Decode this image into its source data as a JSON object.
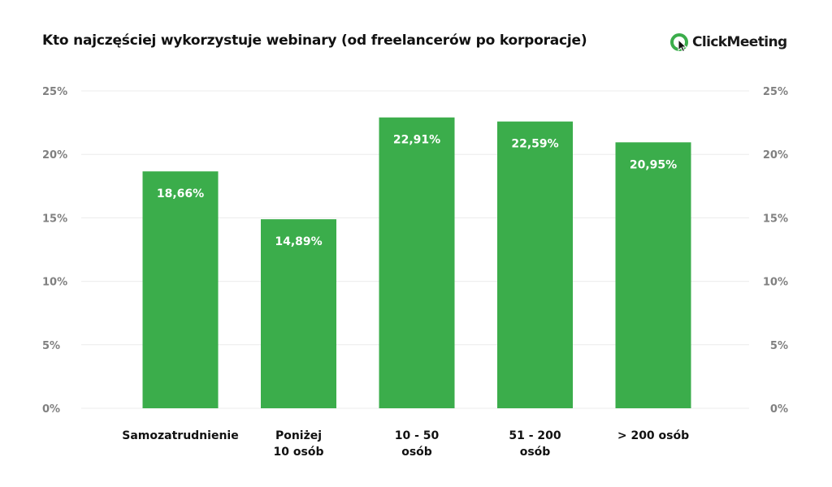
{
  "header": {
    "title": "Kto najczęściej wykorzystuje webinary (od freelancerów po korporacje)",
    "brand": "ClickMeeting",
    "brand_icon": "clickmeeting-logo-icon"
  },
  "colors": {
    "bar": "#3bad4b",
    "grid": "#ececec",
    "tick": "#808080",
    "brand_green": "#3bad4b"
  },
  "chart_data": {
    "type": "bar",
    "title": "Kto najczęściej wykorzystuje webinary (od freelancerów po korporacje)",
    "categories": [
      [
        "Samozatrudnienie"
      ],
      [
        "Poniżej",
        "10 osób"
      ],
      [
        "10 - 50",
        "osób"
      ],
      [
        "51 - 200",
        "osób"
      ],
      [
        "> 200 osób"
      ]
    ],
    "values": [
      18.66,
      14.89,
      22.91,
      22.59,
      20.95
    ],
    "value_labels": [
      "18,66%",
      "14,89%",
      "22,91%",
      "22,59%",
      "20,95%"
    ],
    "y_ticks": [
      0,
      5,
      10,
      15,
      20,
      25
    ],
    "y_tick_labels": [
      "0%",
      "5%",
      "10%",
      "15%",
      "20%",
      "25%"
    ],
    "ylim": [
      0,
      25
    ],
    "grid": true,
    "y_axis_both_sides": true
  }
}
